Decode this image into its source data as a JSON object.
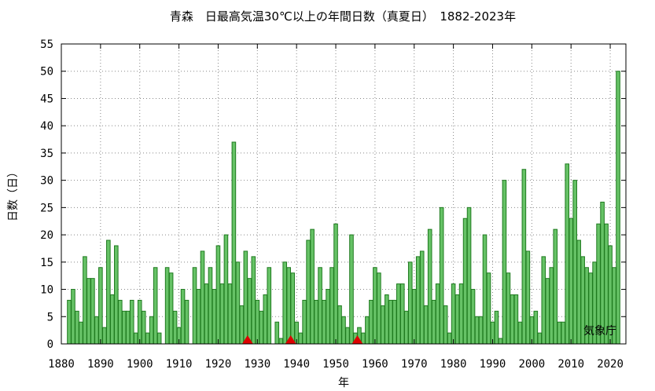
{
  "chart_data": {
    "type": "bar",
    "title": "青森　日最高気温30℃以上の年間日数（真夏日）　1882-2023年",
    "xlabel": "年",
    "ylabel": "日数（日）",
    "credit": "気象庁",
    "x_start": 1882,
    "xlim": [
      1880,
      2024
    ],
    "ylim": [
      0,
      55
    ],
    "x_ticks": [
      "1880",
      "1890",
      "1900",
      "1910",
      "1920",
      "1930",
      "1940",
      "1950",
      "1960",
      "1970",
      "1980",
      "1990",
      "2000",
      "2010",
      "2020"
    ],
    "y_ticks": [
      "0",
      "5",
      "10",
      "15",
      "20",
      "25",
      "30",
      "35",
      "40",
      "45",
      "50",
      "55"
    ],
    "grid": true,
    "bar_color": "#66c266",
    "bar_edge_color": "#1f7a1f",
    "marker_color": "#dd0000",
    "markers": [
      1927.5,
      1938.5,
      1955.5
    ],
    "values": [
      8,
      10,
      6,
      4,
      16,
      12,
      12,
      5,
      14,
      3,
      19,
      9,
      18,
      8,
      6,
      6,
      8,
      2,
      8,
      6,
      2,
      5,
      14,
      2,
      0,
      14,
      13,
      6,
      3,
      10,
      8,
      0,
      14,
      10,
      17,
      11,
      14,
      10,
      18,
      11,
      20,
      11,
      37,
      15,
      7,
      17,
      12,
      16,
      8,
      6,
      9,
      14,
      0,
      4,
      1,
      15,
      14,
      13,
      4,
      2,
      8,
      19,
      21,
      8,
      14,
      8,
      10,
      14,
      22,
      7,
      5,
      3,
      20,
      2,
      3,
      2,
      5,
      8,
      14,
      13,
      7,
      9,
      8,
      8,
      11,
      11,
      6,
      15,
      10,
      16,
      17,
      7,
      21,
      8,
      11,
      25,
      7,
      2,
      11,
      9,
      11,
      23,
      25,
      10,
      5,
      5,
      20,
      13,
      4,
      6,
      1,
      30,
      13,
      9,
      9,
      4,
      32,
      17,
      5,
      6,
      2,
      16,
      12,
      14,
      21,
      4,
      4,
      33,
      23,
      30,
      19,
      16,
      14,
      13,
      15,
      22,
      26,
      22,
      18,
      14,
      50,
      0
    ]
  }
}
